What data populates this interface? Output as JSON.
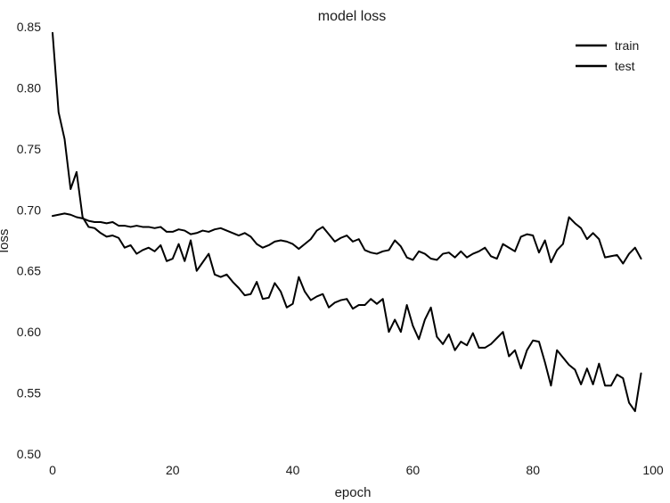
{
  "chart_data": {
    "type": "line",
    "title": "model loss",
    "xlabel": "epoch",
    "ylabel": "loss",
    "xlim": [
      0,
      100
    ],
    "ylim": [
      0.5,
      0.85
    ],
    "x_ticks": [
      0,
      20,
      40,
      60,
      80,
      100
    ],
    "y_ticks": [
      0.5,
      0.55,
      0.6,
      0.65,
      0.7,
      0.75,
      0.8,
      0.85
    ],
    "y_tick_labels": [
      "0.50",
      "0.55",
      "0.60",
      "0.65",
      "0.70",
      "0.75",
      "0.80",
      "0.85"
    ],
    "grid": false,
    "legend_position": "top-right",
    "series": [
      {
        "name": "train",
        "color": "#000000",
        "x": [
          0,
          1,
          2,
          3,
          4,
          5,
          6,
          7,
          8,
          9,
          10,
          11,
          12,
          13,
          14,
          15,
          16,
          17,
          18,
          19,
          20,
          21,
          22,
          23,
          24,
          25,
          26,
          27,
          28,
          29,
          30,
          31,
          32,
          33,
          34,
          35,
          36,
          37,
          38,
          39,
          40,
          41,
          42,
          43,
          44,
          45,
          46,
          47,
          48,
          49,
          50,
          51,
          52,
          53,
          54,
          55,
          56,
          57,
          58,
          59,
          60,
          61,
          62,
          63,
          64,
          65,
          66,
          67,
          68,
          69,
          70,
          71,
          72,
          73,
          74,
          75,
          76,
          77,
          78,
          79,
          80,
          81,
          82,
          83,
          84,
          85,
          86,
          87,
          88,
          89,
          90,
          91,
          92,
          93,
          94,
          95,
          96,
          97,
          98,
          99,
          100
        ],
        "values": [
          0.845,
          0.78,
          0.758,
          0.717,
          0.731,
          0.694,
          0.686,
          0.685,
          0.681,
          0.678,
          0.679,
          0.677,
          0.669,
          0.671,
          0.664,
          0.667,
          0.669,
          0.666,
          0.671,
          0.658,
          0.66,
          0.672,
          0.658,
          0.675,
          0.65,
          0.657,
          0.664,
          0.647,
          0.645,
          0.647,
          0.641,
          0.636,
          0.63,
          0.631,
          0.641,
          0.627,
          0.628,
          0.64,
          0.633,
          0.62,
          0.623,
          0.645,
          0.633,
          0.626,
          0.629,
          0.631,
          0.62,
          0.624,
          0.626,
          0.627,
          0.619,
          0.622,
          0.622,
          0.627,
          0.623,
          0.627,
          0.6,
          0.61,
          0.6,
          0.622,
          0.605,
          0.594,
          0.61,
          0.62,
          0.596,
          0.59,
          0.598,
          0.585,
          0.592,
          0.589,
          0.599,
          0.587,
          0.587,
          0.59,
          0.595,
          0.6,
          0.58,
          0.585,
          0.57,
          0.585,
          0.593,
          0.592,
          0.575,
          0.556,
          0.585,
          0.579,
          0.573,
          0.569,
          0.557,
          0.57,
          0.557,
          0.574,
          0.556,
          0.556,
          0.565,
          0.562,
          0.542,
          0.535,
          0.566,
          null,
          null
        ]
      },
      {
        "name": "test",
        "color": "#000000",
        "x": [
          0,
          1,
          2,
          3,
          4,
          5,
          6,
          7,
          8,
          9,
          10,
          11,
          12,
          13,
          14,
          15,
          16,
          17,
          18,
          19,
          20,
          21,
          22,
          23,
          24,
          25,
          26,
          27,
          28,
          29,
          30,
          31,
          32,
          33,
          34,
          35,
          36,
          37,
          38,
          39,
          40,
          41,
          42,
          43,
          44,
          45,
          46,
          47,
          48,
          49,
          50,
          51,
          52,
          53,
          54,
          55,
          56,
          57,
          58,
          59,
          60,
          61,
          62,
          63,
          64,
          65,
          66,
          67,
          68,
          69,
          70,
          71,
          72,
          73,
          74,
          75,
          76,
          77,
          78,
          79,
          80,
          81,
          82,
          83,
          84,
          85,
          86,
          87,
          88,
          89,
          90,
          91,
          92,
          93,
          94,
          95,
          96,
          97,
          98,
          99,
          100
        ],
        "values": [
          0.695,
          0.696,
          0.697,
          0.696,
          0.694,
          0.693,
          0.691,
          0.69,
          0.69,
          0.689,
          0.69,
          0.687,
          0.687,
          0.686,
          0.687,
          0.686,
          0.686,
          0.685,
          0.686,
          0.682,
          0.682,
          0.684,
          0.683,
          0.68,
          0.681,
          0.683,
          0.682,
          0.684,
          0.685,
          0.683,
          0.681,
          0.679,
          0.681,
          0.678,
          0.672,
          0.669,
          0.671,
          0.674,
          0.675,
          0.674,
          0.672,
          0.668,
          0.672,
          0.676,
          0.683,
          0.686,
          0.68,
          0.674,
          0.677,
          0.679,
          0.674,
          0.676,
          0.667,
          0.665,
          0.664,
          0.666,
          0.667,
          0.675,
          0.67,
          0.661,
          0.659,
          0.666,
          0.664,
          0.66,
          0.659,
          0.664,
          0.665,
          0.661,
          0.666,
          0.661,
          0.664,
          0.666,
          0.669,
          0.662,
          0.66,
          0.672,
          0.669,
          0.666,
          0.678,
          0.68,
          0.679,
          0.665,
          0.675,
          0.657,
          0.667,
          0.672,
          0.694,
          0.689,
          0.685,
          0.676,
          0.681,
          0.676,
          0.661,
          0.662,
          0.663,
          0.656,
          0.664,
          0.669,
          0.66,
          null,
          null
        ]
      }
    ]
  }
}
